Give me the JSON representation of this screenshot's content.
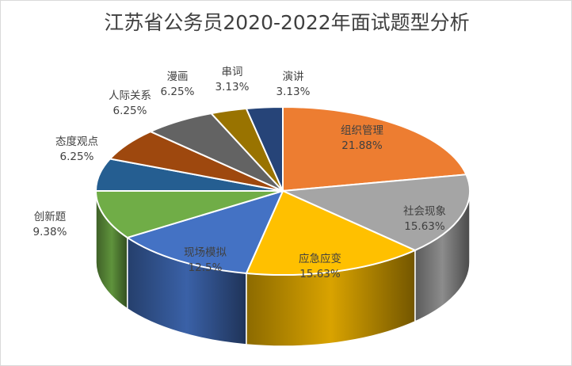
{
  "chart_data": {
    "type": "pie",
    "style": "3d",
    "title": "江苏省公务员2020-2022年面试题型分析",
    "slices": [
      {
        "name": "组织管理",
        "value": 21.88,
        "label": "21.88%",
        "color": "#ed7d31"
      },
      {
        "name": "社会现象",
        "value": 15.63,
        "label": "15.63%",
        "color": "#a5a5a5"
      },
      {
        "name": "应急应变",
        "value": 15.63,
        "label": "15.63%",
        "color": "#ffc000"
      },
      {
        "name": "现场模拟",
        "value": 12.5,
        "label": "12.5%",
        "color": "#4472c4"
      },
      {
        "name": "创新题",
        "value": 9.38,
        "label": "9.38%",
        "color": "#70ad47"
      },
      {
        "name": "态度观点",
        "value": 6.25,
        "label": "6.25%",
        "color": "#255e91"
      },
      {
        "name": "人际关系",
        "value": 6.25,
        "label": "6.25%",
        "color": "#9e480e"
      },
      {
        "name": "漫画",
        "value": 6.25,
        "label": "6.25%",
        "color": "#636363"
      },
      {
        "name": "串词",
        "value": 3.13,
        "label": "3.13%",
        "color": "#997300"
      },
      {
        "name": "演讲",
        "value": 3.13,
        "label": "3.13%",
        "color": "#264478"
      }
    ]
  }
}
